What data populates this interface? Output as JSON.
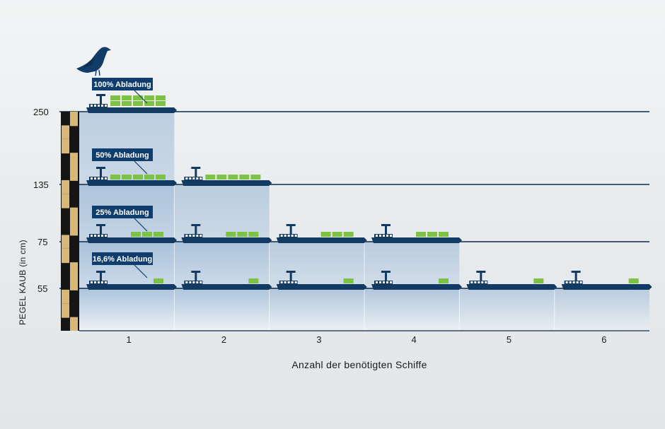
{
  "chart_data": {
    "type": "bar",
    "xlabel": "Anzahl der benötigten Schiffe",
    "ylabel": "PEGEL KAUB (in cm)",
    "categories": [
      "1",
      "2",
      "3",
      "4",
      "5",
      "6"
    ],
    "yticks": [
      "250",
      "135",
      "75",
      "55"
    ],
    "series": [
      {
        "level": 250,
        "label": "100% Abladung",
        "ships": 1,
        "containers_per_ship": 10
      },
      {
        "level": 135,
        "label": "50% Abladung",
        "ships": 2,
        "containers_per_ship": 5
      },
      {
        "level": 75,
        "label": "25% Abladung",
        "ships": 4,
        "containers_per_ship": 3
      },
      {
        "level": 55,
        "label": "16,6% Abladung",
        "ships": 6,
        "containers_per_ship": 1
      }
    ],
    "colors": {
      "water_top": "#95b4d3",
      "water_bottom": "#e4ecf3",
      "line": "#0f2a4a",
      "ship": "#133a63",
      "cargo": "#7dc242",
      "badge": "#0f3e6e",
      "gauge_dark": "#151515",
      "gauge_light": "#d9b877"
    },
    "icons": [
      "seagull-icon",
      "ship-icon",
      "water-gauge-icon"
    ]
  }
}
